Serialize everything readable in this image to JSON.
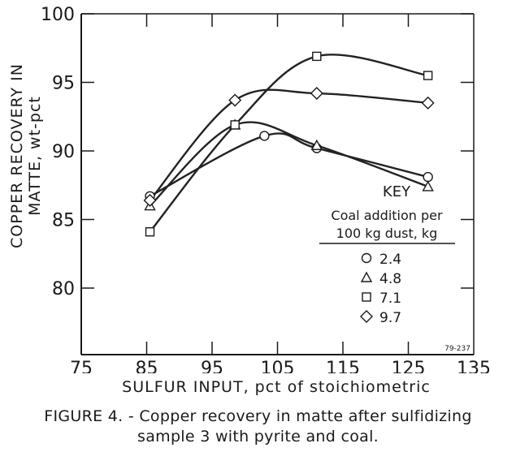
{
  "chart_data": {
    "type": "line",
    "title": "",
    "xlabel": "SULFUR INPUT, pct of stoichiometric",
    "ylabel_line1": "COPPER RECOVERY IN",
    "ylabel_line2": "MATTE, wt-pct",
    "ylabel": "COPPER RECOVERY IN MATTE, wt-pct",
    "xlim": [
      75,
      135
    ],
    "ylim": [
      80,
      100
    ],
    "xticks": [
      75,
      85,
      95,
      105,
      115,
      125,
      135
    ],
    "yticks": [
      80,
      85,
      90,
      95,
      100
    ],
    "grid": false,
    "legend_position": "lower right (inside plot)",
    "legend_title": "KEY",
    "legend_subtitle_line1": "Coal addition per",
    "legend_subtitle_line2": "100 kg dust, kg",
    "series": [
      {
        "name": "2.4",
        "marker": "circle",
        "x": [
          85.5,
          103,
          111,
          128
        ],
        "values": [
          86.7,
          91.1,
          90.2,
          88.1
        ]
      },
      {
        "name": "4.8",
        "marker": "triangle",
        "x": [
          85.5,
          98.5,
          111,
          128
        ],
        "values": [
          86.0,
          91.9,
          90.4,
          87.4
        ]
      },
      {
        "name": "7.1",
        "marker": "square",
        "x": [
          85.5,
          98.5,
          111,
          128
        ],
        "values": [
          84.1,
          91.9,
          96.9,
          95.5
        ]
      },
      {
        "name": "9.7",
        "marker": "diamond",
        "x": [
          85.5,
          98.5,
          111,
          128
        ],
        "values": [
          86.4,
          93.7,
          94.2,
          93.5
        ]
      }
    ],
    "annotation": "79-237"
  },
  "caption": {
    "line1": "FIGURE 4. - Copper recovery in matte after sulfidizing",
    "line2": "sample 3 with pyrite and coal."
  }
}
